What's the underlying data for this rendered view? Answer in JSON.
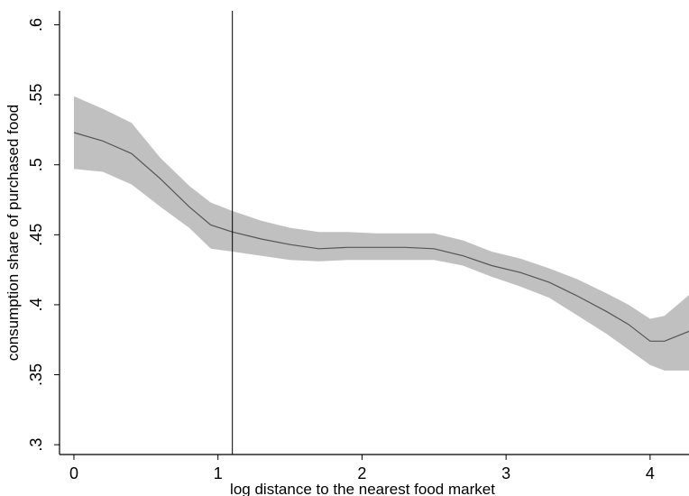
{
  "chart_data": {
    "type": "line",
    "title": "",
    "xlabel": "log distance to the nearest food market",
    "ylabel": "consumption share of purchased food",
    "xlim": [
      -0.1,
      4.27
    ],
    "ylim": [
      0.293,
      0.61
    ],
    "x_ticks": [
      {
        "value": 0,
        "label": "0"
      },
      {
        "value": 1,
        "label": "1"
      },
      {
        "value": 2,
        "label": "2"
      },
      {
        "value": 3,
        "label": "3"
      },
      {
        "value": 4,
        "label": "4"
      }
    ],
    "y_ticks": [
      {
        "value": 0.3,
        "label": ".3"
      },
      {
        "value": 0.35,
        "label": ".35"
      },
      {
        "value": 0.4,
        "label": ".4"
      },
      {
        "value": 0.45,
        "label": ".45"
      },
      {
        "value": 0.5,
        "label": ".5"
      },
      {
        "value": 0.55,
        "label": ".55"
      },
      {
        "value": 0.6,
        "label": ".6"
      }
    ],
    "grid": false,
    "legend": "none",
    "vertical_reference_line": {
      "x": 1.1
    },
    "colors": {
      "band": "#c0c0c0",
      "line": "#555555",
      "reference_line": "#000000",
      "axis": "#000000"
    },
    "series": [
      {
        "kind": "confidence_band",
        "x": [
          0,
          0.2,
          0.4,
          0.6,
          0.8,
          0.95,
          1.1,
          1.3,
          1.5,
          1.7,
          1.9,
          2.1,
          2.3,
          2.5,
          2.7,
          2.9,
          3.1,
          3.3,
          3.5,
          3.7,
          3.85,
          4.0,
          4.1,
          4.27
        ],
        "upper": [
          0.549,
          0.54,
          0.53,
          0.505,
          0.485,
          0.473,
          0.467,
          0.46,
          0.455,
          0.452,
          0.452,
          0.451,
          0.451,
          0.451,
          0.446,
          0.438,
          0.433,
          0.426,
          0.418,
          0.408,
          0.4,
          0.39,
          0.392,
          0.407
        ],
        "lower": [
          0.497,
          0.495,
          0.486,
          0.47,
          0.455,
          0.44,
          0.438,
          0.435,
          0.432,
          0.431,
          0.432,
          0.432,
          0.432,
          0.432,
          0.428,
          0.42,
          0.413,
          0.405,
          0.392,
          0.379,
          0.368,
          0.357,
          0.353,
          0.353
        ]
      },
      {
        "kind": "line",
        "x": [
          0,
          0.2,
          0.4,
          0.6,
          0.8,
          0.95,
          1.1,
          1.3,
          1.5,
          1.7,
          1.9,
          2.1,
          2.3,
          2.5,
          2.7,
          2.9,
          3.1,
          3.3,
          3.5,
          3.7,
          3.85,
          4.0,
          4.1,
          4.27
        ],
        "y": [
          0.523,
          0.517,
          0.508,
          0.49,
          0.47,
          0.457,
          0.452,
          0.447,
          0.443,
          0.44,
          0.441,
          0.441,
          0.441,
          0.44,
          0.435,
          0.428,
          0.423,
          0.416,
          0.406,
          0.395,
          0.386,
          0.374,
          0.374,
          0.381
        ]
      }
    ]
  }
}
